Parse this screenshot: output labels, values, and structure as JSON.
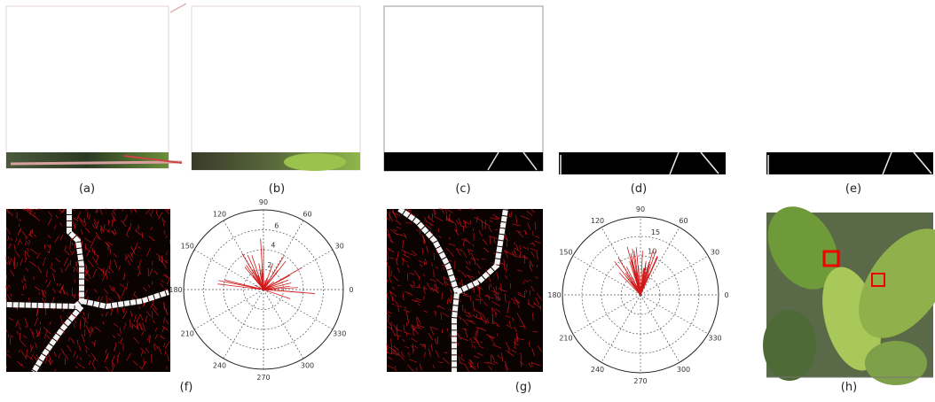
{
  "panels": {
    "a": "(a)",
    "b": "(b)",
    "c": "(c)",
    "d": "(d)",
    "e": "(e)",
    "f": "(f)",
    "g": "(g)",
    "h": "(h)"
  },
  "polar_f": {
    "angle_labels": [
      90,
      60,
      30,
      0,
      330,
      300,
      270,
      240,
      210,
      180,
      150,
      120
    ],
    "radius_labels": [
      2,
      4,
      6
    ]
  },
  "polar_g": {
    "angle_labels": [
      90,
      60,
      30,
      0,
      330,
      300,
      270,
      240,
      210,
      180,
      150,
      120
    ],
    "radius_labels": [
      5,
      10,
      15
    ]
  }
}
